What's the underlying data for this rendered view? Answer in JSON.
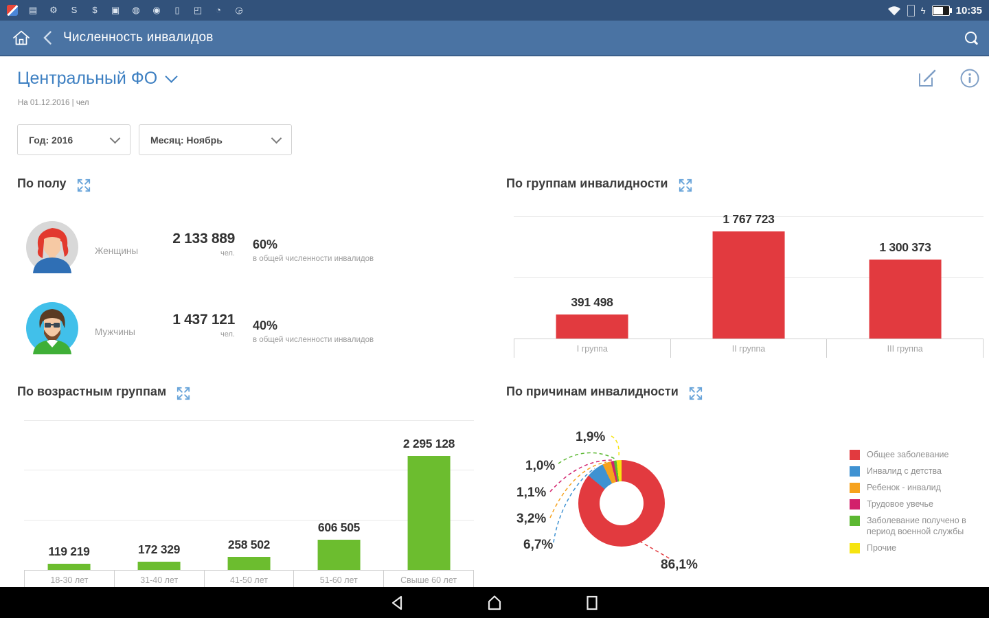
{
  "status_bar": {
    "time": "10:35",
    "notification_icons": [
      {
        "name": "app-logo-icon",
        "glyph": ""
      },
      {
        "name": "folder-icon",
        "glyph": "▤"
      },
      {
        "name": "wrench-icon",
        "glyph": "⚙"
      },
      {
        "name": "skype-icon",
        "glyph": "S"
      },
      {
        "name": "payment-icon",
        "glyph": "$"
      },
      {
        "name": "sim-card-icon",
        "glyph": "▣"
      },
      {
        "name": "lightbulb-icon",
        "glyph": "◍"
      },
      {
        "name": "settings-gear-icon",
        "glyph": "◉"
      },
      {
        "name": "battery-app-icon",
        "glyph": "▯"
      },
      {
        "name": "camera-icon",
        "glyph": "◰"
      },
      {
        "name": "clock-icon",
        "glyph": "◔"
      },
      {
        "name": "sync-icon",
        "glyph": "◶"
      }
    ]
  },
  "app_bar": {
    "title": "Численность инвалидов"
  },
  "header": {
    "region": "Центральный ФО",
    "date_line": "На 01.12.2016 | чел",
    "year_value": "Год: 2016",
    "month_value": "Месяц: Ноябрь"
  },
  "gender_section": {
    "title": "По полу",
    "rows": [
      {
        "label": "Женщины",
        "value": "2 133 889",
        "unit": "чел.",
        "percent": "60%",
        "note": "в общей численности инвалидов"
      },
      {
        "label": "Мужчины",
        "value": "1 437 121",
        "unit": "чел.",
        "percent": "40%",
        "note": "в общей численности инвалидов"
      }
    ]
  },
  "chart_data": [
    {
      "id": "disability-groups",
      "type": "bar",
      "title": "По группам инвалидности",
      "categories": [
        "I группа",
        "II группа",
        "III группа"
      ],
      "values": [
        391498,
        1767723,
        1300373
      ],
      "value_labels": [
        "391 498",
        "1 767 723",
        "1 300 373"
      ],
      "color": "#e23a3f",
      "ylim": [
        0,
        2060000
      ],
      "gridlines": [
        1000000,
        2000000
      ],
      "grid": "on",
      "legend_position": "none"
    },
    {
      "id": "age-groups",
      "type": "bar",
      "title": "По возрастным группам",
      "categories": [
        "18-30 лет",
        "31-40 лет",
        "41-50 лет",
        "51-60 лет",
        "Свыше 60 лет"
      ],
      "values": [
        119219,
        172329,
        258502,
        606505,
        2295128
      ],
      "value_labels": [
        "119 219",
        "172 329",
        "258 502",
        "606 505",
        "2 295 128"
      ],
      "color": "#6cbd2f",
      "ylim": [
        0,
        3200000
      ],
      "gridlines": [
        1000000,
        2000000,
        3000000
      ],
      "grid": "on",
      "legend_position": "none"
    },
    {
      "id": "disability-causes",
      "type": "donut",
      "title": "По причинам инвалидности",
      "legend_position": "right",
      "slices": [
        {
          "label": "Общее заболевание",
          "pct": 86.1,
          "pct_label": "86,1%",
          "color": "#e23a3f"
        },
        {
          "label": "Инвалид с детства",
          "pct": 6.7,
          "pct_label": "6,7%",
          "color": "#3f92d2"
        },
        {
          "label": "Ребенок - инвалид",
          "pct": 3.2,
          "pct_label": "3,2%",
          "color": "#f6a21d"
        },
        {
          "label": "Трудовое увечье",
          "pct": 1.1,
          "pct_label": "1,1%",
          "color": "#d2216b"
        },
        {
          "label": "Заболевание получено в период военной службы",
          "pct": 1.0,
          "pct_label": "1,0%",
          "color": "#5cb832"
        },
        {
          "label": "Прочие",
          "pct": 1.9,
          "pct_label": "1,9%",
          "color": "#f6e410"
        }
      ]
    }
  ]
}
